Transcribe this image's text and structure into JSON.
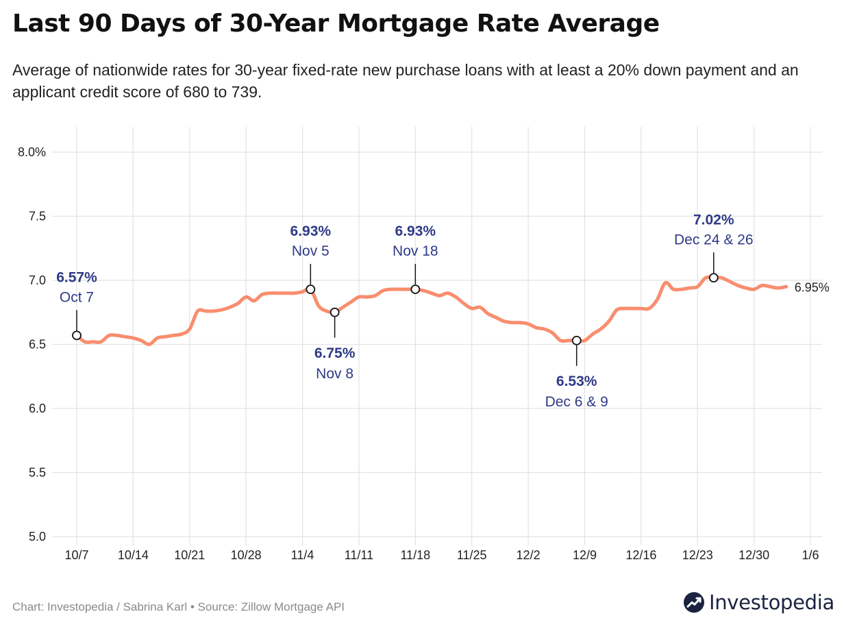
{
  "header": {
    "title": "Last 90 Days of 30-Year Mortgage Rate Average",
    "subtitle": "Average of nationwide rates for 30-year fixed-rate new purchase loans with at least a 20% down payment and an applicant credit score of 680 to 739."
  },
  "footer": {
    "credit": "Chart: Investopedia / Sabrina Karl • Source: Zillow Mortgage API",
    "brand": "Investopedia"
  },
  "icons": {
    "brand_logo": "investopedia-logo-icon"
  },
  "chart_data": {
    "type": "line",
    "title": "Last 90 Days of 30-Year Mortgage Rate Average",
    "xlabel": "",
    "ylabel": "",
    "ylim": [
      5.0,
      8.0
    ],
    "xlim": [
      "2024-10-07",
      "2025-01-06"
    ],
    "y_ticks": [
      5.0,
      5.5,
      6.0,
      6.5,
      7.0,
      7.5,
      8.0
    ],
    "y_tick_labels": [
      "5.0",
      "5.5",
      "6.0",
      "6.5",
      "7.0",
      "7.5",
      "8.0%"
    ],
    "x_ticks": [
      "2024-10-07",
      "2024-10-14",
      "2024-10-21",
      "2024-10-28",
      "2024-11-04",
      "2024-11-11",
      "2024-11-18",
      "2024-11-25",
      "2024-12-02",
      "2024-12-09",
      "2024-12-16",
      "2024-12-23",
      "2024-12-30",
      "2025-01-06"
    ],
    "x_tick_labels": [
      "10/7",
      "10/14",
      "10/21",
      "10/28",
      "11/4",
      "11/11",
      "11/18",
      "11/25",
      "12/2",
      "12/9",
      "12/16",
      "12/23",
      "12/30",
      "1/6"
    ],
    "grid": true,
    "legend": "none",
    "line_color": "#f98d6e",
    "annotation_color": "#2e3a87",
    "series": [
      {
        "points": [
          [
            "2024-10-07",
            6.57
          ],
          [
            "2024-10-08",
            6.52
          ],
          [
            "2024-10-09",
            6.52
          ],
          [
            "2024-10-10",
            6.52
          ],
          [
            "2024-10-11",
            6.57
          ],
          [
            "2024-10-12",
            6.57
          ],
          [
            "2024-10-13",
            6.56
          ],
          [
            "2024-10-14",
            6.55
          ],
          [
            "2024-10-15",
            6.53
          ],
          [
            "2024-10-16",
            6.5
          ],
          [
            "2024-10-17",
            6.55
          ],
          [
            "2024-10-18",
            6.56
          ],
          [
            "2024-10-19",
            6.57
          ],
          [
            "2024-10-20",
            6.58
          ],
          [
            "2024-10-21",
            6.62
          ],
          [
            "2024-10-22",
            6.76
          ],
          [
            "2024-10-23",
            6.76
          ],
          [
            "2024-10-24",
            6.76
          ],
          [
            "2024-10-25",
            6.77
          ],
          [
            "2024-10-26",
            6.79
          ],
          [
            "2024-10-27",
            6.82
          ],
          [
            "2024-10-28",
            6.87
          ],
          [
            "2024-10-29",
            6.84
          ],
          [
            "2024-10-30",
            6.89
          ],
          [
            "2024-10-31",
            6.9
          ],
          [
            "2024-11-01",
            6.9
          ],
          [
            "2024-11-02",
            6.9
          ],
          [
            "2024-11-03",
            6.9
          ],
          [
            "2024-11-04",
            6.91
          ],
          [
            "2024-11-05",
            6.93
          ],
          [
            "2024-11-06",
            6.8
          ],
          [
            "2024-11-07",
            6.76
          ],
          [
            "2024-11-08",
            6.75
          ],
          [
            "2024-11-09",
            6.79
          ],
          [
            "2024-11-10",
            6.83
          ],
          [
            "2024-11-11",
            6.87
          ],
          [
            "2024-11-12",
            6.87
          ],
          [
            "2024-11-13",
            6.88
          ],
          [
            "2024-11-14",
            6.92
          ],
          [
            "2024-11-15",
            6.93
          ],
          [
            "2024-11-16",
            6.93
          ],
          [
            "2024-11-17",
            6.93
          ],
          [
            "2024-11-18",
            6.93
          ],
          [
            "2024-11-19",
            6.92
          ],
          [
            "2024-11-20",
            6.9
          ],
          [
            "2024-11-21",
            6.88
          ],
          [
            "2024-11-22",
            6.9
          ],
          [
            "2024-11-23",
            6.87
          ],
          [
            "2024-11-24",
            6.82
          ],
          [
            "2024-11-25",
            6.78
          ],
          [
            "2024-11-26",
            6.79
          ],
          [
            "2024-11-27",
            6.74
          ],
          [
            "2024-11-28",
            6.71
          ],
          [
            "2024-11-29",
            6.68
          ],
          [
            "2024-11-30",
            6.67
          ],
          [
            "2024-12-01",
            6.67
          ],
          [
            "2024-12-02",
            6.66
          ],
          [
            "2024-12-03",
            6.63
          ],
          [
            "2024-12-04",
            6.62
          ],
          [
            "2024-12-05",
            6.59
          ],
          [
            "2024-12-06",
            6.53
          ],
          [
            "2024-12-07",
            6.53
          ],
          [
            "2024-12-08",
            6.53
          ],
          [
            "2024-12-09",
            6.53
          ],
          [
            "2024-12-10",
            6.58
          ],
          [
            "2024-12-11",
            6.62
          ],
          [
            "2024-12-12",
            6.68
          ],
          [
            "2024-12-13",
            6.77
          ],
          [
            "2024-12-14",
            6.78
          ],
          [
            "2024-12-15",
            6.78
          ],
          [
            "2024-12-16",
            6.78
          ],
          [
            "2024-12-17",
            6.78
          ],
          [
            "2024-12-18",
            6.85
          ],
          [
            "2024-12-19",
            6.98
          ],
          [
            "2024-12-20",
            6.93
          ],
          [
            "2024-12-21",
            6.93
          ],
          [
            "2024-12-22",
            6.94
          ],
          [
            "2024-12-23",
            6.95
          ],
          [
            "2024-12-24",
            7.02
          ],
          [
            "2024-12-25",
            7.02
          ],
          [
            "2024-12-26",
            7.02
          ],
          [
            "2024-12-27",
            6.99
          ],
          [
            "2024-12-28",
            6.96
          ],
          [
            "2024-12-29",
            6.94
          ],
          [
            "2024-12-30",
            6.93
          ],
          [
            "2024-12-31",
            6.96
          ],
          [
            "2025-01-01",
            6.95
          ],
          [
            "2025-01-02",
            6.94
          ],
          [
            "2025-01-03",
            6.95
          ]
        ]
      }
    ],
    "annotations": [
      {
        "date": "2024-10-07",
        "value_label": "6.57%",
        "date_label": "Oct 7",
        "value": 6.57,
        "placement": "above"
      },
      {
        "date": "2024-11-05",
        "value_label": "6.93%",
        "date_label": "Nov 5",
        "value": 6.93,
        "placement": "above"
      },
      {
        "date": "2024-11-08",
        "value_label": "6.75%",
        "date_label": "Nov 8",
        "value": 6.75,
        "placement": "below"
      },
      {
        "date": "2024-11-18",
        "value_label": "6.93%",
        "date_label": "Nov 18",
        "value": 6.93,
        "placement": "above"
      },
      {
        "date": "2024-12-08",
        "value_label": "6.53%",
        "date_label": "Dec 6 & 9",
        "value": 6.53,
        "placement": "below"
      },
      {
        "date": "2024-12-25",
        "value_label": "7.02%",
        "date_label": "Dec 24 & 26",
        "value": 7.02,
        "placement": "above"
      }
    ],
    "end_label": "6.95%"
  }
}
